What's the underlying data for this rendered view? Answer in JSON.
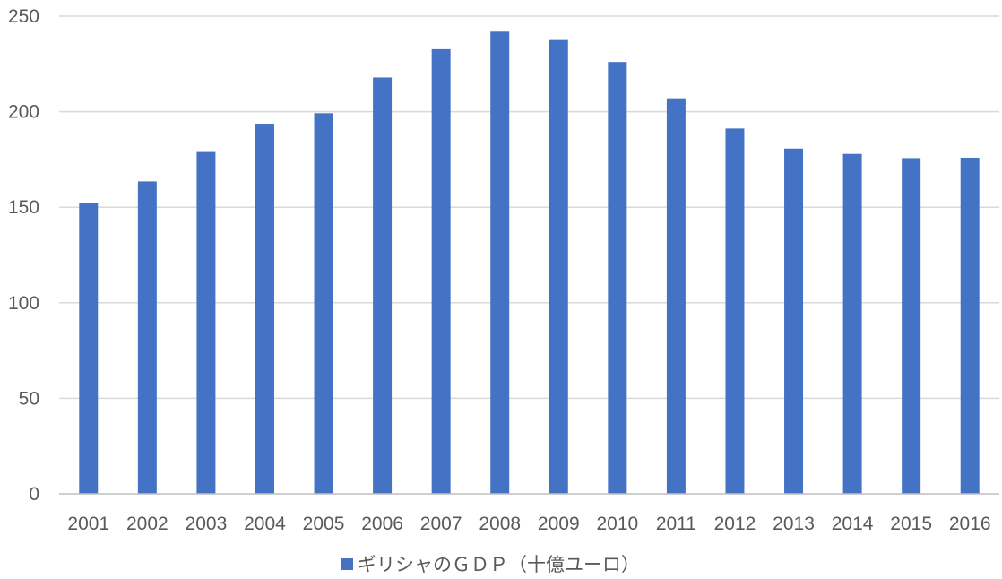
{
  "chart_data": {
    "type": "bar",
    "categories": [
      "2001",
      "2002",
      "2003",
      "2004",
      "2005",
      "2006",
      "2007",
      "2008",
      "2009",
      "2010",
      "2011",
      "2012",
      "2013",
      "2014",
      "2015",
      "2016"
    ],
    "series": [
      {
        "name": "ギリシャのＧＤＰ（十億ユーロ）",
        "values": [
          152.2,
          163.5,
          178.9,
          193.7,
          199.2,
          217.9,
          232.7,
          241.9,
          237.5,
          226.0,
          207.0,
          191.2,
          180.7,
          177.9,
          175.7,
          175.9
        ],
        "color": "#4472c4"
      }
    ],
    "yticks": [
      "0",
      "50",
      "100",
      "150",
      "200",
      "250"
    ],
    "ylim": [
      0,
      250
    ],
    "grid": true,
    "legend_position": "bottom",
    "gridline_color": "#d9d9d9",
    "axis_color": "#bfbfbf"
  }
}
